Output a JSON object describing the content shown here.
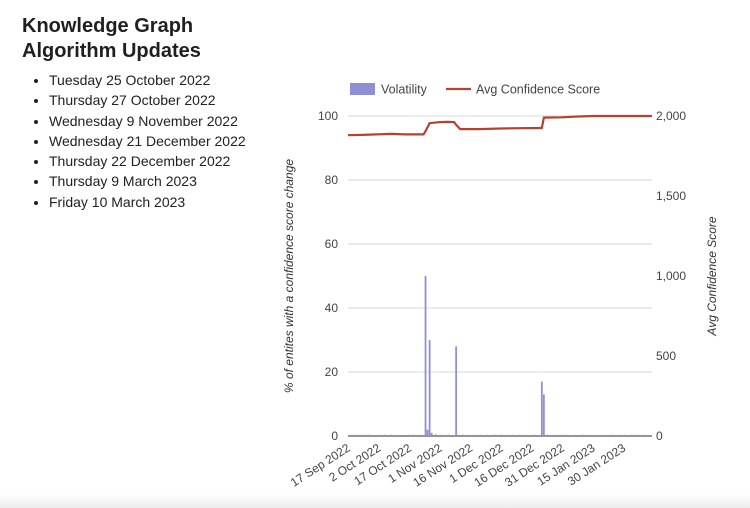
{
  "page": {
    "title": "Knowledge Graph Algorithm Updates",
    "updates": [
      "Tuesday 25 October 2022",
      "Thursday 27 October 2022",
      "Wednesday 9 November 2022",
      "Wednesday 21 December 2022",
      "Thursday 22 December 2022",
      "Thursday 9 March 2023",
      "Friday 10 March 2023"
    ]
  },
  "chart_data": {
    "type": "bar",
    "title": "",
    "xlabel": "",
    "ylabel": "% of entites with a confidence score change",
    "y2label": "Avg Confidence Score",
    "legend_position": "top",
    "grid": true,
    "ylim": [
      0,
      100
    ],
    "y2lim": [
      0,
      2000
    ],
    "yticks": [
      "0",
      "20",
      "40",
      "60",
      "80",
      "100"
    ],
    "y2ticks": [
      "0",
      "500",
      "1,000",
      "1,500",
      "2,000"
    ],
    "x_range": [
      "2022-09-17",
      "2023-02-13"
    ],
    "xticks": [
      "17 Sep 2022",
      "2 Oct 2022",
      "17 Oct 2022",
      "1 Nov 2022",
      "16 Nov 2022",
      "1 Dec 2022",
      "16 Dec 2022",
      "31 Dec 2022",
      "15 Jan 2023",
      "30 Jan 2023"
    ],
    "series": [
      {
        "name": "Volatility",
        "type": "bar",
        "axis": "left",
        "color": "#8f8fd6",
        "points": [
          [
            "2022-09-18",
            0.3
          ],
          [
            "2022-09-19",
            0.3
          ],
          [
            "2022-09-22",
            0.4
          ],
          [
            "2022-09-24",
            0.3
          ],
          [
            "2022-09-27",
            0.4
          ],
          [
            "2022-10-03",
            0.3
          ],
          [
            "2022-10-05",
            0.3
          ],
          [
            "2022-10-08",
            0.4
          ],
          [
            "2022-10-11",
            0.3
          ],
          [
            "2022-10-17",
            0.3
          ],
          [
            "2022-10-19",
            0.4
          ],
          [
            "2022-10-22",
            0.3
          ],
          [
            "2022-10-25",
            50
          ],
          [
            "2022-10-26",
            2
          ],
          [
            "2022-10-27",
            30
          ],
          [
            "2022-10-28",
            1
          ],
          [
            "2022-10-30",
            0.5
          ],
          [
            "2022-11-02",
            0.4
          ],
          [
            "2022-11-05",
            0.3
          ],
          [
            "2022-11-09",
            28
          ],
          [
            "2022-11-12",
            0.4
          ],
          [
            "2022-11-15",
            0.3
          ],
          [
            "2022-11-18",
            0.3
          ],
          [
            "2022-11-21",
            0.4
          ],
          [
            "2022-11-24",
            0.3
          ],
          [
            "2022-11-28",
            0.3
          ],
          [
            "2022-12-01",
            0.4
          ],
          [
            "2022-12-04",
            0.3
          ],
          [
            "2022-12-07",
            0.3
          ],
          [
            "2022-12-10",
            0.4
          ],
          [
            "2022-12-13",
            0.3
          ],
          [
            "2022-12-17",
            0.4
          ],
          [
            "2022-12-21",
            17
          ],
          [
            "2022-12-22",
            13
          ],
          [
            "2022-12-24",
            0.4
          ],
          [
            "2022-12-27",
            0.3
          ],
          [
            "2022-12-30",
            0.3
          ],
          [
            "2023-01-02",
            0.3
          ],
          [
            "2023-01-06",
            0.3
          ],
          [
            "2023-01-10",
            0.4
          ],
          [
            "2023-01-13",
            0.3
          ],
          [
            "2023-01-17",
            0.3
          ],
          [
            "2023-01-21",
            0.3
          ],
          [
            "2023-01-24",
            0.4
          ],
          [
            "2023-01-28",
            0.3
          ],
          [
            "2023-01-31",
            0.3
          ],
          [
            "2023-02-03",
            0.4
          ],
          [
            "2023-02-06",
            0.3
          ],
          [
            "2023-02-09",
            0.3
          ]
        ]
      },
      {
        "name": "Avg Confidence Score",
        "type": "line",
        "axis": "right",
        "color": "#b5422c",
        "points": [
          [
            "2022-09-17",
            1880
          ],
          [
            "2022-09-24",
            1882
          ],
          [
            "2022-10-01",
            1885
          ],
          [
            "2022-10-08",
            1888
          ],
          [
            "2022-10-15",
            1885
          ],
          [
            "2022-10-24",
            1885
          ],
          [
            "2022-10-25",
            1905
          ],
          [
            "2022-10-27",
            1955
          ],
          [
            "2022-10-29",
            1958
          ],
          [
            "2022-11-01",
            1962
          ],
          [
            "2022-11-05",
            1963
          ],
          [
            "2022-11-08",
            1962
          ],
          [
            "2022-11-09",
            1945
          ],
          [
            "2022-11-11",
            1918
          ],
          [
            "2022-11-20",
            1918
          ],
          [
            "2022-12-01",
            1922
          ],
          [
            "2022-12-10",
            1924
          ],
          [
            "2022-12-20",
            1925
          ],
          [
            "2022-12-21",
            1925
          ],
          [
            "2022-12-22",
            1990
          ],
          [
            "2022-12-31",
            1992
          ],
          [
            "2023-01-06",
            1996
          ],
          [
            "2023-01-15",
            2000
          ],
          [
            "2023-02-13",
            2000
          ]
        ]
      }
    ]
  }
}
